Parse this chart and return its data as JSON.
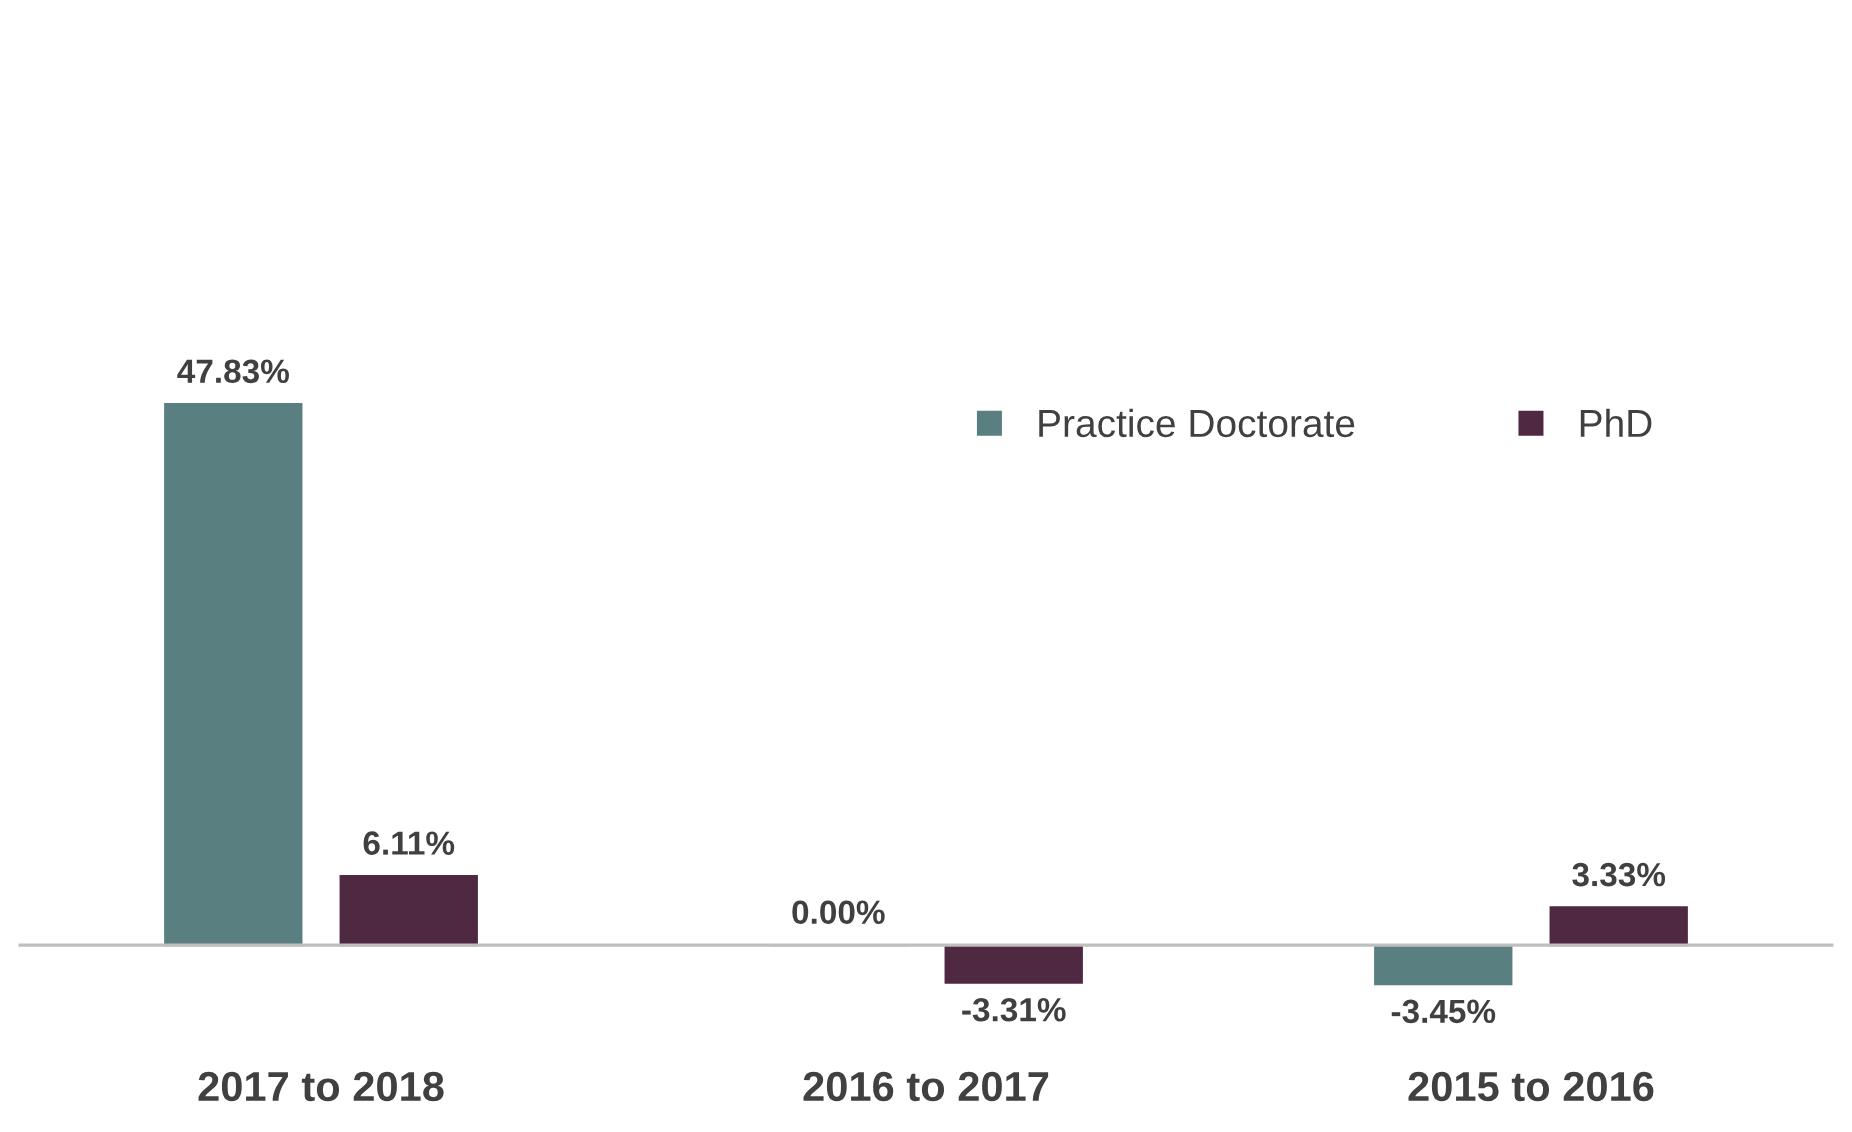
{
  "chart_data": {
    "type": "bar",
    "categories": [
      "2017 to 2018",
      "2016 to 2017",
      "2015 to 2016"
    ],
    "series": [
      {
        "name": "Practice Doctorate",
        "color": "#5a7f80",
        "values": [
          47.83,
          0.0,
          -3.45
        ],
        "value_labels": [
          "47.83%",
          "0.00%",
          "-3.45%"
        ]
      },
      {
        "name": "PhD",
        "color": "#4f2842",
        "values": [
          6.11,
          -3.31,
          3.33
        ],
        "value_labels": [
          "6.11%",
          "-3.31%",
          "3.33%"
        ]
      }
    ],
    "legend": "top right",
    "grid": false
  }
}
